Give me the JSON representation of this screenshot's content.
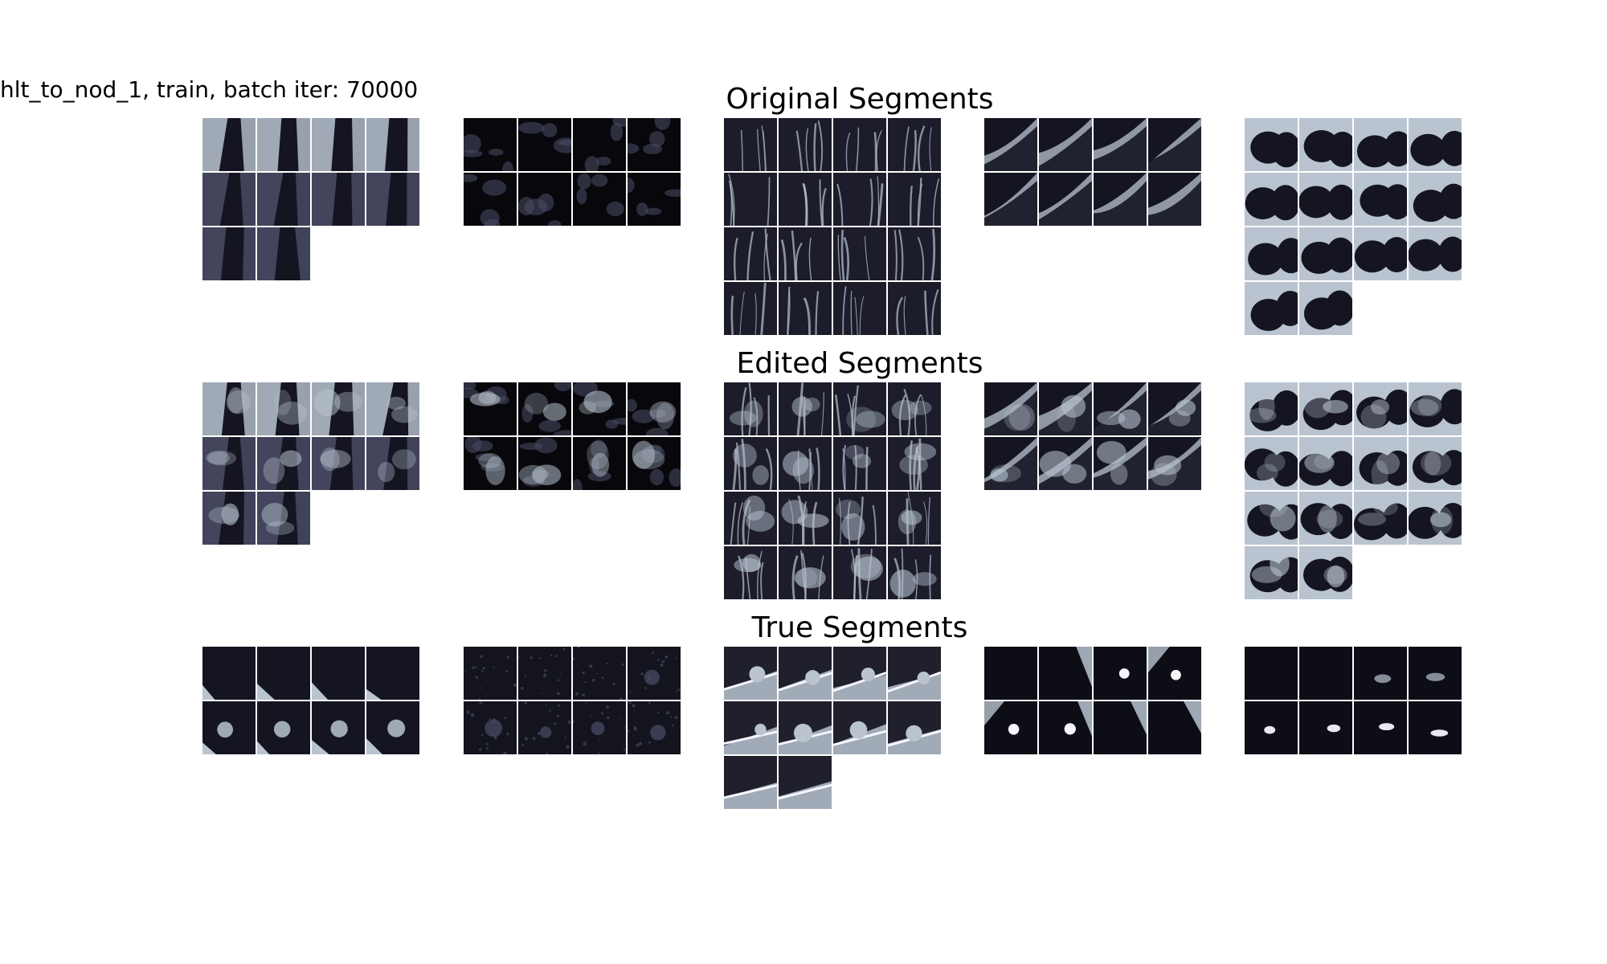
{
  "figure_title": "hlt_to_nod_1, train, batch iter: 70000",
  "sections": [
    {
      "key": "original",
      "title": "Original Segments",
      "panels": [
        {
          "tiles": 10,
          "style": "slab"
        },
        {
          "tiles": 8,
          "style": "blobs"
        },
        {
          "tiles": 16,
          "style": "vessels"
        },
        {
          "tiles": 8,
          "style": "edge"
        },
        {
          "tiles": 14,
          "style": "lobes"
        }
      ]
    },
    {
      "key": "edited",
      "title": "Edited Segments",
      "panels": [
        {
          "tiles": 10,
          "style": "slab-edit"
        },
        {
          "tiles": 8,
          "style": "blobs-edit"
        },
        {
          "tiles": 16,
          "style": "vessels-edit"
        },
        {
          "tiles": 8,
          "style": "edge-edit"
        },
        {
          "tiles": 14,
          "style": "lobes-edit"
        }
      ]
    },
    {
      "key": "true",
      "title": "True Segments",
      "panels": [
        {
          "tiles": 8,
          "style": "nodule-corner"
        },
        {
          "tiles": 8,
          "style": "noise"
        },
        {
          "tiles": 10,
          "style": "streak"
        },
        {
          "tiles": 8,
          "style": "bright-nodule"
        },
        {
          "tiles": 8,
          "style": "faint"
        }
      ]
    }
  ],
  "colors": {
    "background": "#ffffff",
    "tile_dark": "#151522",
    "tile_mid": "#4a4e66",
    "tile_light": "#b9c4d0",
    "tile_bright": "#f4f6fb",
    "separator": "#ffffff"
  }
}
